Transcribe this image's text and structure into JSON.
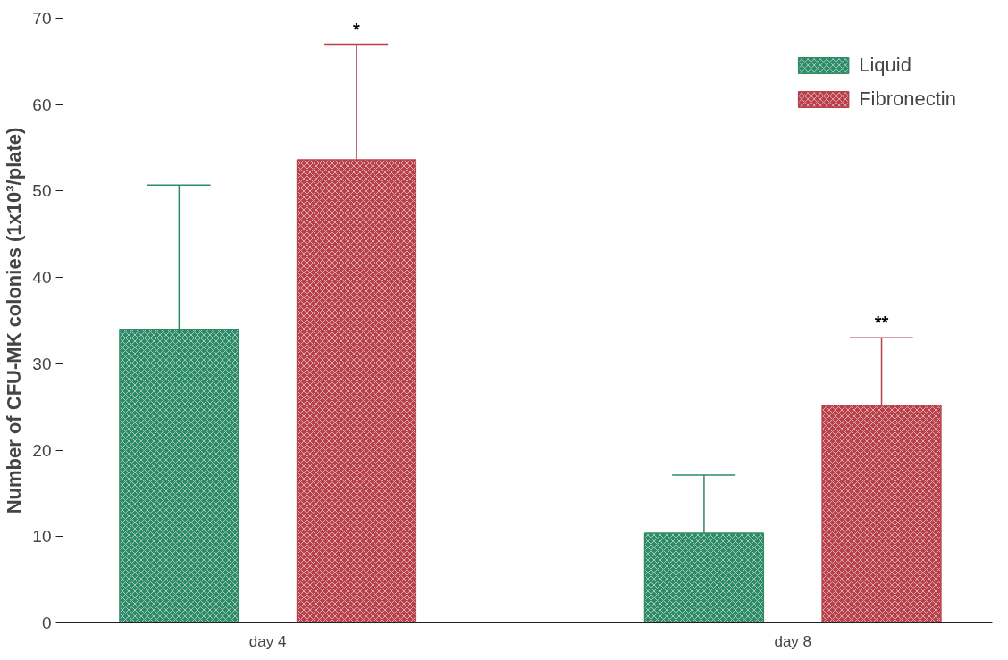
{
  "chart_data": {
    "type": "bar",
    "ylabel": "Number of CFU-MK colonies (1x10³/plate)",
    "categories": [
      "day 4",
      "day 8"
    ],
    "series": [
      {
        "name": "Liquid",
        "color": "#2e8b68",
        "values": [
          34.0,
          10.4
        ],
        "errors": [
          [
            34.0,
            50.7
          ],
          [
            10.4,
            17.1
          ]
        ]
      },
      {
        "name": "Fibronectin",
        "color": "#b8404a",
        "values": [
          53.6,
          25.2
        ],
        "errors": [
          [
            53.6,
            67.0
          ],
          [
            25.2,
            33.0
          ]
        ]
      }
    ],
    "ylim": [
      0,
      70
    ],
    "yticks": [
      0,
      10,
      20,
      30,
      40,
      50,
      60,
      70
    ],
    "grid": false,
    "legend": "top right",
    "annotations": [
      "*",
      "**"
    ]
  }
}
